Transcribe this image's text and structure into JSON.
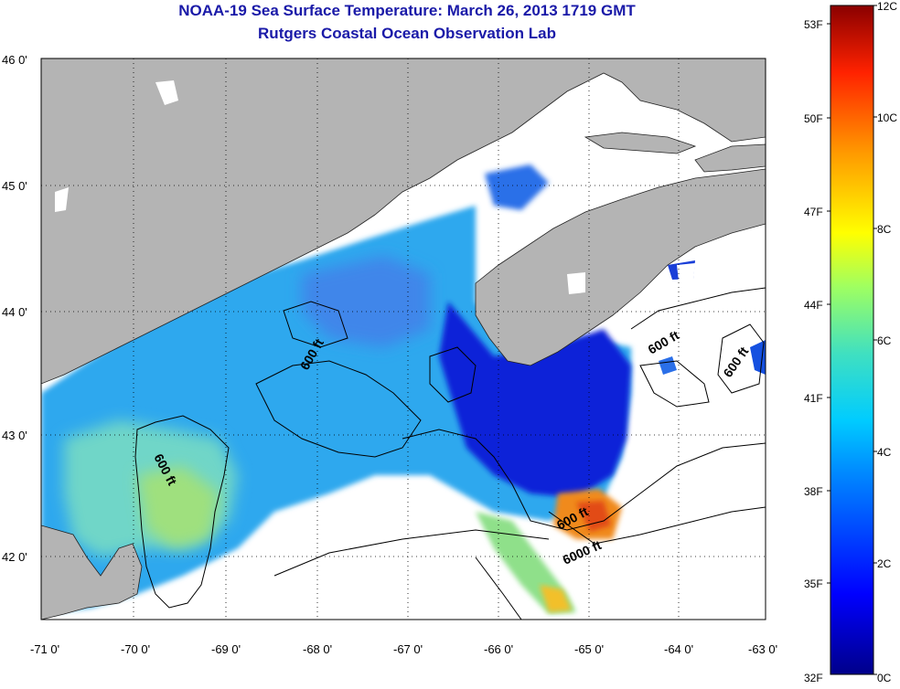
{
  "header": {
    "title": "NOAA-19 Sea Surface Temperature:  March 26, 2013 1719 GMT",
    "subtitle": "Rutgers Coastal Ocean Observation Lab"
  },
  "axes": {
    "lon_labels": [
      "-71 0'",
      "-70 0'",
      "-69 0'",
      "-68 0'",
      "-67 0'",
      "-66 0'",
      "-65 0'",
      "-64 0'",
      "-63 0'"
    ],
    "lat_labels": [
      "46 0'",
      "45 0'",
      "44 0'",
      "43 0'",
      "42 0'"
    ]
  },
  "contours": {
    "labels": [
      "600 ft",
      "600 ft",
      "600 ft",
      "600 ft",
      "600 ft",
      "6000 ft"
    ]
  },
  "colorbar": {
    "fahrenheit_labels": [
      "53F",
      "50F",
      "47F",
      "44F",
      "41F",
      "38F",
      "35F",
      "32F"
    ],
    "celsius_labels": [
      "12C",
      "10C",
      "8C",
      "6C",
      "4C",
      "2C",
      "0C"
    ]
  },
  "colors": {
    "land": "#b4b4b4",
    "title": "#1a1aa8",
    "cold": "#0a22d8",
    "mid": "#2fa4ee",
    "warm": "#f08a1c"
  }
}
